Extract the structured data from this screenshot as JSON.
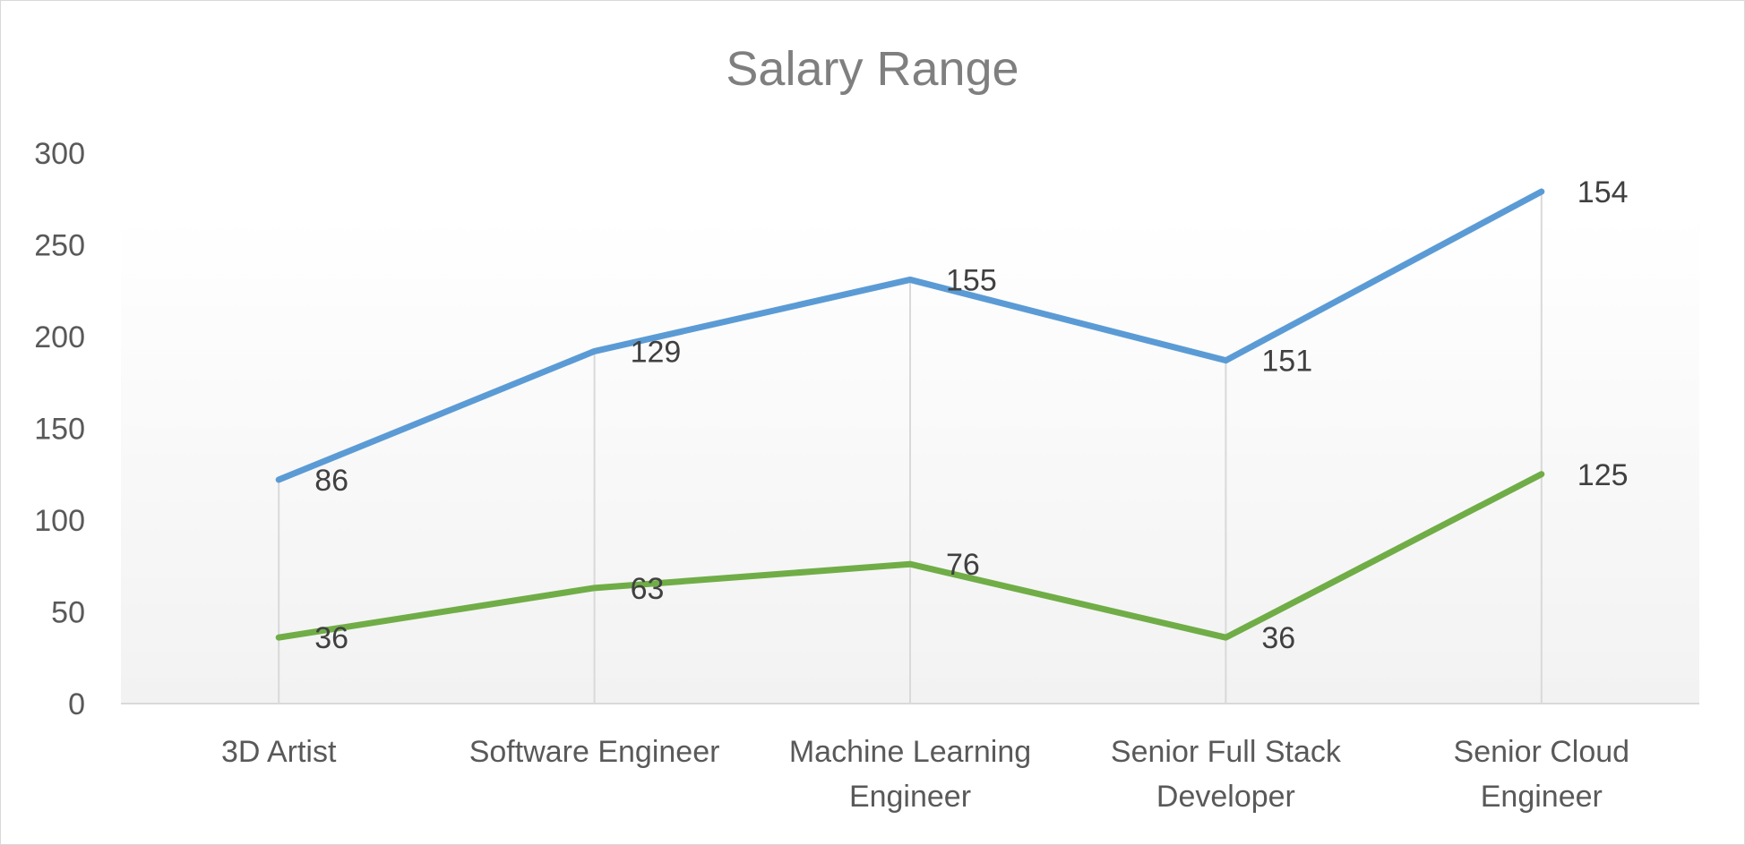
{
  "chart_data": {
    "type": "line",
    "title": "Salary Range",
    "categories": [
      [
        "3D Artist"
      ],
      [
        "Software Engineer"
      ],
      [
        "Machine Learning",
        "Engineer"
      ],
      [
        "Senior Full Stack",
        "Developer"
      ],
      [
        "Senior Cloud",
        "Engineer"
      ]
    ],
    "ylim": [
      0,
      300
    ],
    "yticks": [
      0,
      50,
      100,
      150,
      200,
      250,
      300
    ],
    "grid": false,
    "legend": "none",
    "series": [
      {
        "values": [
          36,
          63,
          76,
          36,
          125
        ],
        "data_labels": [
          "36",
          "63",
          "76",
          "36",
          "125"
        ],
        "color": "#70ad47"
      },
      {
        "values": [
          122,
          192,
          231,
          187,
          279
        ],
        "data_labels": [
          "86",
          "129",
          "155",
          "151",
          "154"
        ],
        "color": "#5b9bd5"
      }
    ],
    "colors": {
      "title": "#7f7f7f",
      "tick_text": "#595959",
      "label_text": "#404040",
      "axis_line": "#d9d9d9",
      "drop_line": "#d9d9d9",
      "plot_gradient_top": "#ffffff",
      "plot_gradient_bottom": "#f2f2f2"
    }
  }
}
